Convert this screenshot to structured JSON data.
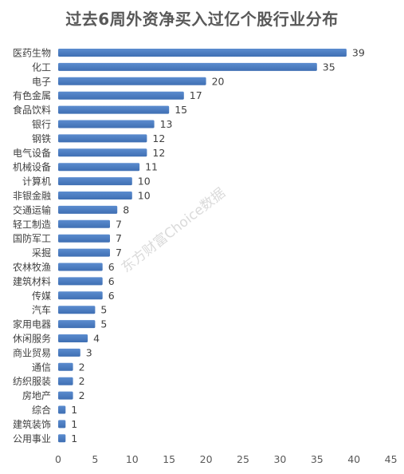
{
  "chart_data": {
    "type": "bar",
    "orientation": "horizontal",
    "title": "过去6周外资净买入过亿个股行业分布",
    "categories": [
      "医药生物",
      "化工",
      "电子",
      "有色金属",
      "食品饮料",
      "银行",
      "钢铁",
      "电气设备",
      "机械设备",
      "计算机",
      "非银金融",
      "交通运输",
      "轻工制造",
      "国防军工",
      "采掘",
      "农林牧渔",
      "建筑材料",
      "传媒",
      "汽车",
      "家用电器",
      "休闲服务",
      "商业贸易",
      "通信",
      "纺织服装",
      "房地产",
      "综合",
      "建筑装饰",
      "公用事业"
    ],
    "values": [
      39,
      35,
      20,
      17,
      15,
      13,
      12,
      12,
      11,
      10,
      10,
      8,
      7,
      7,
      7,
      6,
      6,
      6,
      5,
      5,
      4,
      3,
      2,
      2,
      2,
      1,
      1,
      1
    ],
    "xlim": [
      0,
      45
    ],
    "xticks": [
      0,
      5,
      10,
      15,
      20,
      25,
      30,
      35,
      40,
      45
    ],
    "grid": false,
    "legend": "none",
    "bar_color": "#5b8ccf",
    "bar_color_dark": "#3f6fb3",
    "watermark": "东方财富Choice数据"
  }
}
